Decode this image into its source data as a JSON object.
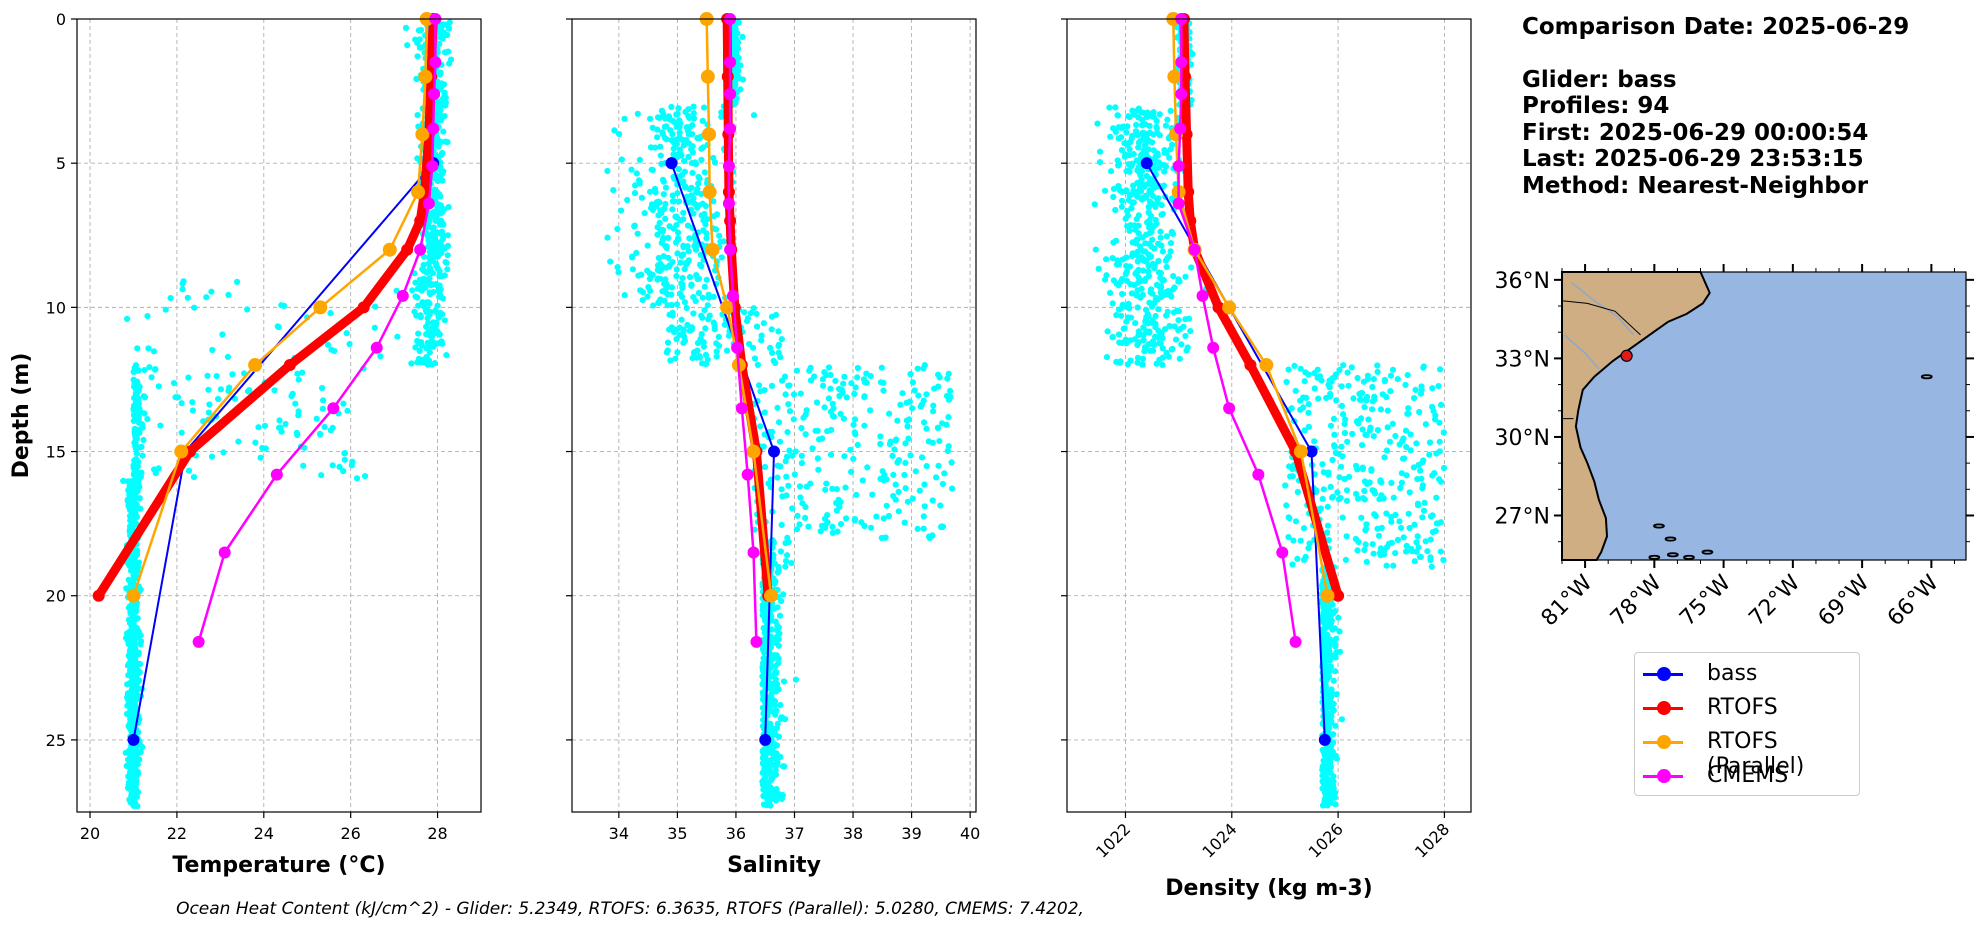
{
  "info": {
    "comparison_date": "Comparison Date: 2025-06-29",
    "glider": "Glider: bass",
    "profiles": "Profiles: 94",
    "first": "First: 2025-06-29 00:00:54",
    "last": "Last: 2025-06-29 23:53:15",
    "method": "Method: Nearest-Neighbor"
  },
  "legend": [
    {
      "label": "bass",
      "color": "#0000ff"
    },
    {
      "label": "RTOFS",
      "color": "#ff0000"
    },
    {
      "label": "RTOFS (Parallel)",
      "color": "#ffa500"
    },
    {
      "label": "CMEMS",
      "color": "#ff00ff"
    }
  ],
  "footer": "Ocean Heat Content (kJ/cm^2) - Glider: 5.2349,  RTOFS: 6.3635,  RTOFS (Parallel): 5.0280,  CMEMS: 7.4202,",
  "colors": {
    "scatter": "#00ffff",
    "glider": "#0000ff",
    "rtofs": "#ff0000",
    "parallel": "#ffa500",
    "cmems": "#ff00ff",
    "ocean": "#97b6e1",
    "land": "#cfae83"
  },
  "chart_data": [
    {
      "type": "line",
      "title": "",
      "xlabel": "Temperature (°C)",
      "ylabel": "Depth (m)",
      "xlim": [
        19.7,
        29.0
      ],
      "ylim": [
        27.5,
        0
      ],
      "xticks": [
        20,
        22,
        24,
        26,
        28
      ],
      "yticks": [
        0,
        5,
        10,
        15,
        20,
        25
      ],
      "grid": true,
      "series": [
        {
          "name": "bass",
          "x": [
            27.9,
            22.2,
            21.0
          ],
          "y": [
            5,
            15,
            25
          ]
        },
        {
          "name": "RTOFS",
          "x": [
            27.9,
            27.85,
            27.8,
            27.7,
            27.6,
            27.3,
            26.3,
            24.6,
            22.3,
            20.2
          ],
          "y": [
            0,
            2,
            4,
            6,
            7,
            8,
            10,
            12,
            15,
            20
          ]
        },
        {
          "name": "RTOFS (Parallel)",
          "x": [
            27.75,
            27.72,
            27.65,
            27.55,
            26.9,
            25.3,
            23.8,
            22.1,
            21.0
          ],
          "y": [
            0,
            2,
            4,
            6,
            8,
            10,
            12,
            15,
            20
          ]
        },
        {
          "name": "CMEMS",
          "x": [
            27.95,
            27.95,
            27.92,
            27.9,
            27.88,
            27.8,
            27.6,
            27.2,
            26.6,
            25.6,
            24.3,
            23.1,
            22.5
          ],
          "y": [
            0,
            1.5,
            2.6,
            3.8,
            5.1,
            6.4,
            8,
            9.6,
            11.4,
            13.5,
            15.8,
            18.5,
            21.6
          ]
        }
      ]
    },
    {
      "type": "line",
      "title": "",
      "xlabel": "Salinity",
      "ylabel": "",
      "xlim": [
        33.2,
        40.1
      ],
      "ylim": [
        27.5,
        0
      ],
      "xticks": [
        34,
        35,
        36,
        37,
        38,
        39,
        40
      ],
      "yticks": [
        0,
        5,
        10,
        15,
        20,
        25
      ],
      "grid": true,
      "series": [
        {
          "name": "bass",
          "x": [
            34.9,
            36.65,
            36.5
          ],
          "y": [
            5,
            15,
            25
          ]
        },
        {
          "name": "RTOFS",
          "x": [
            35.85,
            35.86,
            35.87,
            35.88,
            35.9,
            35.92,
            35.98,
            36.1,
            36.35,
            36.55
          ],
          "y": [
            0,
            2,
            4,
            6,
            7,
            8,
            10,
            12,
            15,
            20
          ]
        },
        {
          "name": "RTOFS (Parallel)",
          "x": [
            35.5,
            35.52,
            35.54,
            35.55,
            35.6,
            35.85,
            36.05,
            36.3,
            36.6
          ],
          "y": [
            0,
            2,
            4,
            6,
            8,
            10,
            12,
            15,
            20
          ]
        },
        {
          "name": "CMEMS",
          "x": [
            35.9,
            35.9,
            35.9,
            35.9,
            35.88,
            35.88,
            35.9,
            35.95,
            36.02,
            36.1,
            36.2,
            36.3,
            36.35
          ],
          "y": [
            0,
            1.5,
            2.6,
            3.8,
            5.1,
            6.4,
            8,
            9.6,
            11.4,
            13.5,
            15.8,
            18.5,
            21.6
          ]
        }
      ]
    },
    {
      "type": "line",
      "title": "",
      "xlabel": "Density (kg m-3)",
      "ylabel": "",
      "xlim": [
        1020.9,
        1028.5
      ],
      "ylim": [
        27.5,
        0
      ],
      "xticks": [
        1022,
        1024,
        1026,
        1028
      ],
      "yticks": [
        0,
        5,
        10,
        15,
        20,
        25
      ],
      "grid": true,
      "series": [
        {
          "name": "bass",
          "x": [
            1022.4,
            1025.5,
            1025.75
          ],
          "y": [
            5,
            15,
            25
          ]
        },
        {
          "name": "RTOFS",
          "x": [
            1023.1,
            1023.12,
            1023.15,
            1023.18,
            1023.22,
            1023.3,
            1023.75,
            1024.35,
            1025.2,
            1026.0
          ],
          "y": [
            0,
            2,
            4,
            6,
            7,
            8,
            10,
            12,
            15,
            20
          ]
        },
        {
          "name": "RTOFS (Parallel)",
          "x": [
            1022.9,
            1022.92,
            1022.95,
            1023.0,
            1023.3,
            1023.95,
            1024.65,
            1025.3,
            1025.8
          ],
          "y": [
            0,
            2,
            4,
            6,
            8,
            10,
            12,
            15,
            20
          ]
        },
        {
          "name": "CMEMS",
          "x": [
            1023.05,
            1023.05,
            1023.05,
            1023.03,
            1023.0,
            1023.0,
            1023.3,
            1023.45,
            1023.65,
            1023.95,
            1024.5,
            1024.95,
            1025.2
          ],
          "y": [
            0,
            1.5,
            2.6,
            3.8,
            5.1,
            6.4,
            8,
            9.6,
            11.4,
            13.5,
            15.8,
            18.5,
            21.6
          ]
        }
      ]
    }
  ],
  "map": {
    "lat_labels": [
      "36°N",
      "33°N",
      "30°N",
      "27°N"
    ],
    "lon_labels": [
      "81°W",
      "78°W",
      "75°W",
      "72°W",
      "69°W",
      "66°W"
    ],
    "lat_values": [
      36,
      33,
      30,
      27
    ],
    "lon_values": [
      -81,
      -78,
      -75,
      -72,
      -69,
      -66
    ],
    "extent": {
      "lon": [
        -82.0,
        -64.5
      ],
      "lat": [
        25.3,
        36.3
      ]
    },
    "glider_location": {
      "lon": -79.2,
      "lat": 33.1
    }
  }
}
